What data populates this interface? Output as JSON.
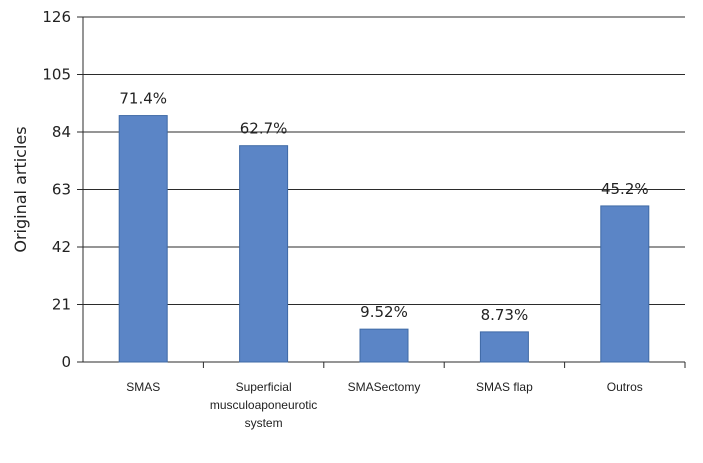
{
  "chart_data": {
    "type": "bar",
    "categories": [
      [
        "SMAS"
      ],
      [
        "Superficial",
        "musculoaponeurotic",
        "system"
      ],
      [
        "SMASectomy"
      ],
      [
        "SMAS flap"
      ],
      [
        "Outros"
      ]
    ],
    "values": [
      90,
      79,
      12,
      11,
      57
    ],
    "data_labels": [
      "71.4%",
      "62.7%",
      "9.52%",
      "8.73%",
      "45.2%"
    ],
    "title": "",
    "xlabel": "",
    "ylabel": "Original  articles",
    "ylim": [
      0,
      126
    ],
    "yticks": [
      0,
      21,
      42,
      63,
      84,
      105,
      126
    ],
    "grid": true,
    "legend": "none",
    "colors": {
      "bar_fill": "#5b85c6",
      "bar_stroke": "#3f6aa6",
      "grid": "#2b2b2b",
      "axis": "#2b2b2b"
    }
  }
}
